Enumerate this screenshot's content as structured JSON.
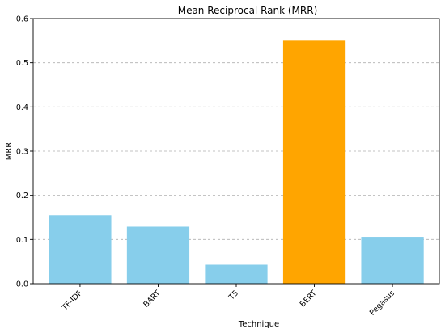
{
  "chart_data": {
    "type": "bar",
    "title": "Mean Reciprocal Rank (MRR)",
    "xlabel": "Technique",
    "ylabel": "MRR",
    "categories": [
      "TF-IDF",
      "BART",
      "T5",
      "BERT",
      "Pegasus"
    ],
    "values": [
      0.155,
      0.129,
      0.043,
      0.55,
      0.106
    ],
    "colors": [
      "#87CEEB",
      "#87CEEB",
      "#87CEEB",
      "#FFA500",
      "#87CEEB"
    ],
    "ylim": [
      0,
      0.6
    ],
    "yticks": [
      0.0,
      0.1,
      0.2,
      0.3,
      0.4,
      0.5,
      0.6
    ],
    "ytick_labels": [
      "0.0",
      "0.1",
      "0.2",
      "0.3",
      "0.4",
      "0.5",
      "0.6"
    ],
    "grid": "y-dashed"
  }
}
